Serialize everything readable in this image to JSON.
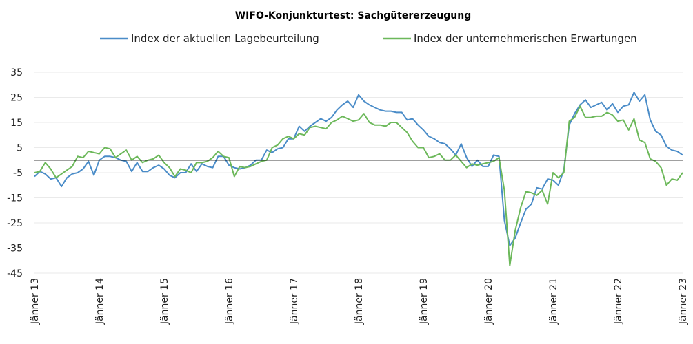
{
  "chart_data": {
    "type": "line",
    "title": "WIFO-Konjunkturtest: Sachgütererzeugung",
    "xlabel": "",
    "ylabel": "",
    "ylim": [
      -45,
      35
    ],
    "yticks": [
      35,
      25,
      15,
      5,
      -5,
      -15,
      -25,
      -35,
      -45
    ],
    "x_tick_labels": [
      "Jänner 13",
      "Jänner 14",
      "Jänner 15",
      "Jänner 16",
      "Jänner 17",
      "Jänner 18",
      "Jänner 19",
      "Jänner 20",
      "Jänner 21",
      "Jänner 22",
      "Jänner 23"
    ],
    "x_start": "2013-01",
    "x_frequency": "monthly",
    "grid": true,
    "legend_position": "top",
    "series": [
      {
        "name": "Index der aktuellen Lagebeurteilung",
        "color": "#4a8cc8",
        "values": [
          -6.5,
          -4.5,
          -5.5,
          -7.5,
          -7,
          -10.5,
          -7,
          -5.5,
          -5,
          -3.5,
          -0.5,
          -6,
          0,
          1.5,
          1.5,
          1,
          0,
          -0.5,
          -4.5,
          -1,
          -4.5,
          -4.5,
          -3,
          -2,
          -3.5,
          -6,
          -7,
          -5,
          -5,
          -1.5,
          -4.5,
          -1.5,
          -2.5,
          -3,
          1.5,
          1.5,
          -2,
          -3,
          -3.5,
          -3,
          -2,
          0,
          0,
          4,
          3,
          4.5,
          5,
          8.5,
          8.5,
          13.5,
          11.5,
          13.5,
          15,
          16.5,
          15.5,
          17,
          20,
          22,
          23.5,
          21,
          26,
          23.5,
          22,
          21,
          20,
          19.5,
          19.5,
          19,
          19,
          16,
          16.5,
          14,
          12,
          9.5,
          8.5,
          7,
          6.5,
          4.5,
          2,
          6.5,
          1,
          -2.5,
          0,
          -2.5,
          -2.5,
          2,
          1.5,
          -24,
          -34,
          -31,
          -25,
          -19.5,
          -17.5,
          -11,
          -11.5,
          -7.5,
          -8,
          -10,
          -4,
          14,
          18.5,
          22,
          24,
          21,
          22,
          23,
          20,
          22.5,
          19,
          21.5,
          22,
          27,
          23.5,
          26,
          16,
          11.5,
          10,
          5.5,
          4,
          3.5,
          2
        ]
      },
      {
        "name": "Index der unternehmerischen Erwartungen",
        "color": "#6cb85a",
        "values": [
          -5,
          -4.5,
          -1,
          -3.5,
          -7,
          -5.5,
          -4,
          -2.5,
          1.5,
          1,
          3.5,
          3,
          2.5,
          5,
          4.5,
          1,
          2.5,
          4,
          0,
          1.5,
          -1,
          0,
          0.5,
          2,
          -1,
          -3,
          -6.5,
          -3.5,
          -4,
          -5,
          -1,
          -1,
          -0.5,
          1,
          3.5,
          1.5,
          1,
          -6.5,
          -2.5,
          -3,
          -2.5,
          -1.5,
          -0.5,
          0,
          5,
          6,
          8.5,
          9.5,
          8.5,
          10.5,
          10,
          13,
          13.5,
          13,
          12.5,
          15,
          16,
          17.5,
          16.5,
          15.5,
          16,
          18.5,
          15,
          14,
          14,
          13.5,
          15,
          15,
          13,
          11,
          7.5,
          5,
          5,
          1,
          1.5,
          2.5,
          0,
          0,
          2,
          -0.5,
          -3,
          -1.5,
          -2,
          -1.5,
          -1,
          -0.5,
          1,
          -12,
          -42,
          -28,
          -19,
          -12.5,
          -13,
          -14,
          -12,
          -17.5,
          -5,
          -7,
          -5,
          15.5,
          17,
          21.5,
          17,
          17,
          17.5,
          17.5,
          19,
          18,
          15.5,
          16,
          12,
          16.5,
          8,
          7,
          0.5,
          -0.5,
          -3,
          -10,
          -7.5,
          -8,
          -5
        ]
      }
    ]
  }
}
